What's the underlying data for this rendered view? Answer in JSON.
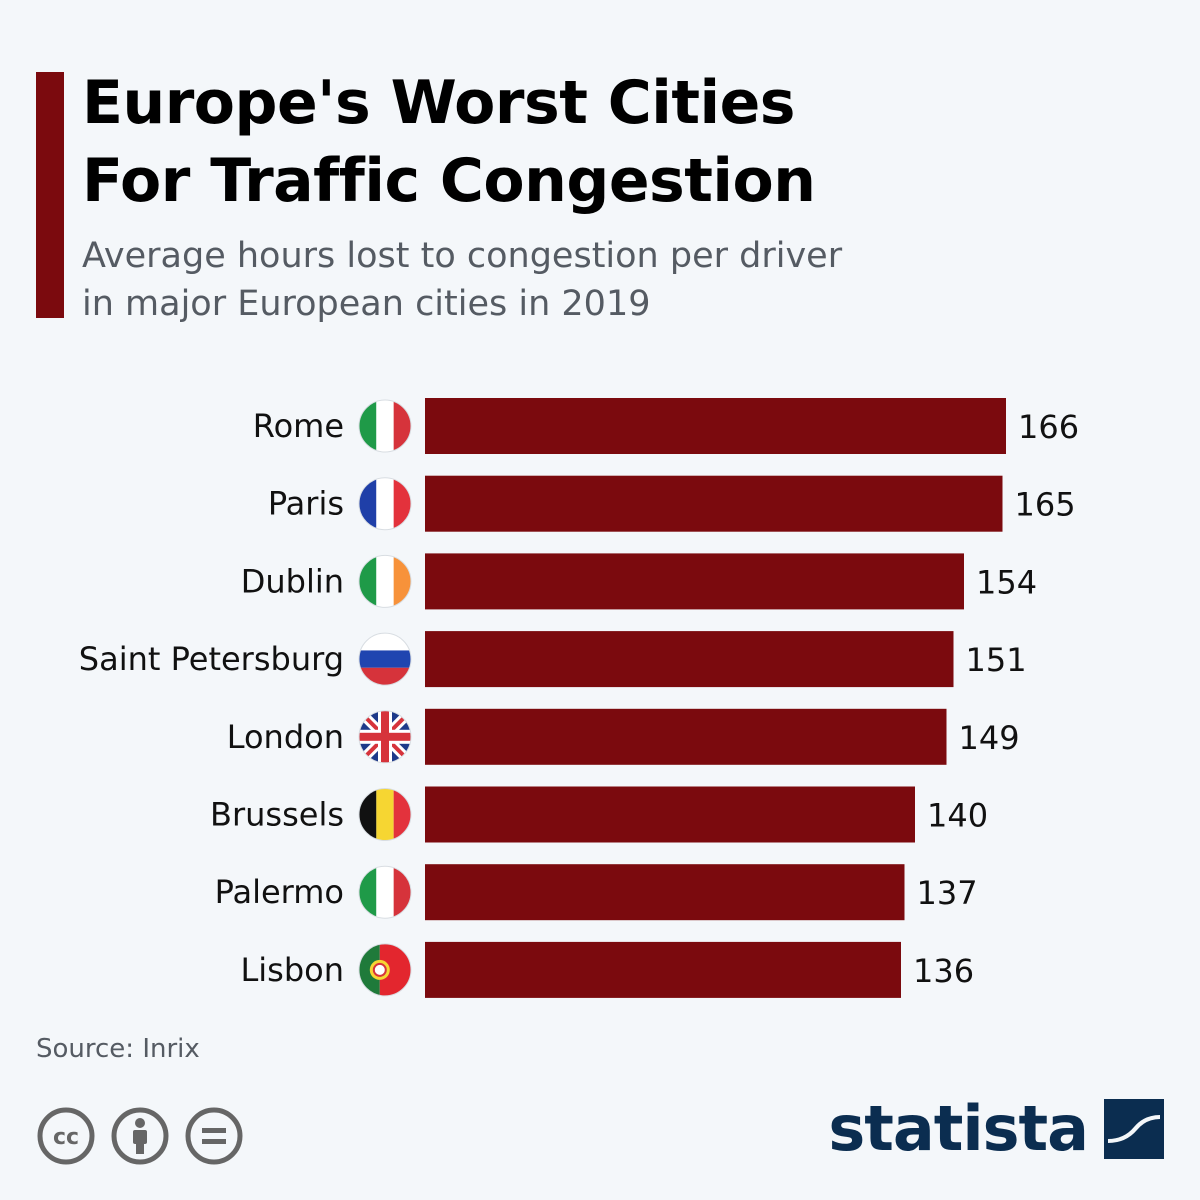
{
  "header": {
    "title_line1": "Europe's Worst Cities",
    "title_line2": "For Traffic Congestion",
    "subtitle_line1": "Average hours lost to congestion per driver",
    "subtitle_line2": "in major European cities in 2019"
  },
  "colors": {
    "accent": "#7b0a0e",
    "bar": "#7b0a0e",
    "logo": "#0b2d50"
  },
  "chart_data": {
    "type": "bar",
    "orientation": "horizontal",
    "title": "Europe's Worst Cities For Traffic Congestion",
    "subtitle": "Average hours lost to congestion per driver in major European cities in 2019",
    "categories": [
      "Rome",
      "Paris",
      "Dublin",
      "Saint Petersburg",
      "London",
      "Brussels",
      "Palermo",
      "Lisbon"
    ],
    "values": [
      166,
      165,
      154,
      151,
      149,
      140,
      137,
      136
    ],
    "flags": [
      "italy-flag-icon",
      "france-flag-icon",
      "ireland-flag-icon",
      "russia-flag-icon",
      "uk-flag-icon",
      "belgium-flag-icon",
      "italy-flag-icon",
      "portugal-flag-icon"
    ],
    "xlim": [
      0,
      166
    ],
    "grid": false,
    "legend": "none"
  },
  "footer": {
    "source": "Source: Inrix",
    "license_icons": [
      "cc-icon",
      "attribution-icon",
      "no-derivatives-icon"
    ],
    "logo_text": "statista",
    "logo_icon": "statista-logo-icon"
  }
}
